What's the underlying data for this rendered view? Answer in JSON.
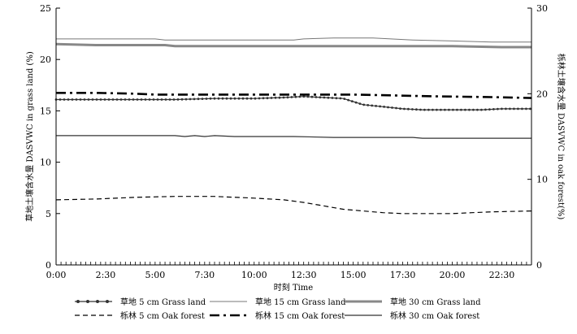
{
  "chart_data": {
    "type": "line",
    "xlabel": "时刻 Time",
    "ylabel_left": "草地土壤含水量 DASVWC in grass land (%)",
    "ylabel_right": "栎林土壤含水量 DASVWC in oak forest(%)",
    "x_ticks": [
      "0:00",
      "2:30",
      "5:00",
      "7:30",
      "10:00",
      "12:30",
      "15:00",
      "17:30",
      "20:00",
      "22:30"
    ],
    "x_tick_hours": [
      0,
      2.5,
      5,
      7.5,
      10,
      12.5,
      15,
      17.5,
      20,
      22.5
    ],
    "xlim": [
      0,
      24
    ],
    "ylim_left": [
      0,
      25
    ],
    "ylim_right": [
      0,
      30
    ],
    "y_ticks_left": [
      0,
      5,
      10,
      15,
      20,
      25
    ],
    "y_ticks_right": [
      0,
      10,
      20,
      30
    ],
    "grid": false,
    "legend_position": "bottom",
    "series": [
      {
        "name": "草地 5 cm Grass land",
        "axis": "left",
        "style": "dotted-marker",
        "color": "#333333",
        "x": [
          0,
          2,
          4,
          6,
          8,
          10,
          11.5,
          12.5,
          13.5,
          14.5,
          15,
          15.5,
          16.5,
          17.5,
          18.5,
          20,
          21.5,
          22.5,
          24
        ],
        "y": [
          16.1,
          16.1,
          16.1,
          16.1,
          16.2,
          16.2,
          16.3,
          16.4,
          16.3,
          16.2,
          15.9,
          15.6,
          15.4,
          15.2,
          15.1,
          15.1,
          15.1,
          15.2,
          15.2
        ]
      },
      {
        "name": "草地 15 cm Grass land",
        "axis": "left",
        "style": "thin",
        "color": "#777777",
        "x": [
          0,
          5,
          5.5,
          6,
          12,
          12.5,
          14,
          16,
          18,
          20,
          22,
          24
        ],
        "y": [
          22.0,
          22.0,
          21.9,
          21.9,
          21.9,
          22.0,
          22.1,
          22.1,
          21.9,
          21.8,
          21.7,
          21.7
        ]
      },
      {
        "name": "草地 30 cm Grass land",
        "axis": "left",
        "style": "thick",
        "color": "#888888",
        "x": [
          0,
          2,
          5,
          5.5,
          6,
          12,
          16,
          20,
          22.5,
          24
        ],
        "y": [
          21.5,
          21.4,
          21.4,
          21.4,
          21.3,
          21.3,
          21.3,
          21.3,
          21.2,
          21.2
        ]
      },
      {
        "name": "栎林 5 cm Oak forest",
        "axis": "right",
        "style": "dashed",
        "color": "#000000",
        "x": [
          0,
          2,
          4,
          6,
          8,
          10,
          11.5,
          12.5,
          13.5,
          14.5,
          15.5,
          16.5,
          17.5,
          18.5,
          20,
          21,
          22,
          24
        ],
        "y": [
          7.6,
          7.7,
          7.9,
          8.0,
          8.0,
          7.8,
          7.6,
          7.3,
          6.9,
          6.5,
          6.3,
          6.1,
          6.0,
          6.0,
          6.0,
          6.1,
          6.2,
          6.3
        ]
      },
      {
        "name": "栎林 15 cm Oak forest",
        "axis": "right",
        "style": "dash-dot-thick",
        "color": "#000000",
        "x": [
          0,
          2,
          4,
          5,
          8,
          12,
          15,
          17,
          19,
          22,
          24
        ],
        "y": [
          20.1,
          20.1,
          20.0,
          19.9,
          19.9,
          19.9,
          19.9,
          19.8,
          19.7,
          19.6,
          19.5
        ]
      },
      {
        "name": "栎林 30 cm  Oak forest",
        "axis": "right",
        "style": "solid",
        "color": "#333333",
        "x": [
          0,
          4,
          6,
          6.5,
          7,
          7.5,
          8,
          9,
          12,
          14,
          16,
          18,
          18.5,
          19,
          24
        ],
        "y": [
          15.1,
          15.1,
          15.1,
          15.0,
          15.1,
          15.0,
          15.1,
          15.0,
          15.0,
          14.9,
          14.9,
          14.9,
          14.8,
          14.8,
          14.8
        ]
      }
    ]
  }
}
